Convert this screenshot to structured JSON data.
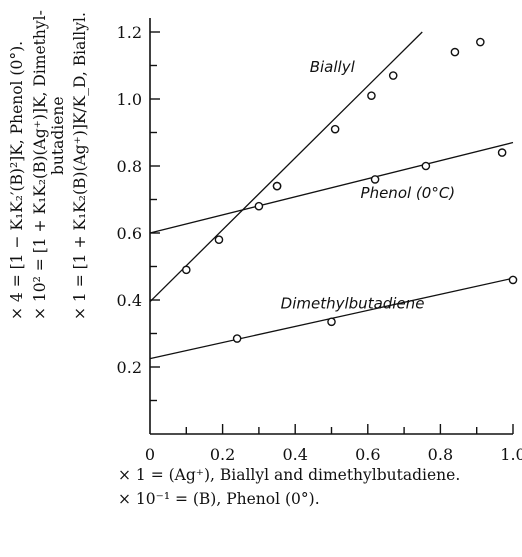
{
  "chart_data": {
    "type": "scatter",
    "title": "",
    "xlim": [
      0,
      1.0
    ],
    "ylim": [
      0,
      1.2
    ],
    "x_ticks": [
      "0",
      "0.2",
      "0.4",
      "0.6",
      "0.8",
      "1.0"
    ],
    "y_ticks": [
      "0.2",
      "0.4",
      "0.6",
      "0.8",
      "1.0",
      "1.2"
    ],
    "ylabel_lines": [
      "× 4 = [1 − K₁K₂′(B)²]K, Phenol (0°).",
      "× 10² = [1 + K₁K₂(B)(Ag⁺)]K, Dimethyl-",
      "butadiene",
      "× 1 = [1 + K₁K₂(B)(Ag⁺)]K/K_D, Biallyl."
    ],
    "xlabel_lines": [
      "× 1 = (Ag⁺), Biallyl and dimethylbutadiene.",
      "× 10⁻¹ = (B), Phenol (0°)."
    ],
    "series": [
      {
        "name": "Biallyl",
        "points": [
          [
            0.1,
            0.49
          ],
          [
            0.19,
            0.58
          ],
          [
            0.35,
            0.74
          ],
          [
            0.51,
            0.91
          ],
          [
            0.61,
            1.01
          ],
          [
            0.67,
            1.07
          ],
          [
            0.84,
            1.14
          ],
          [
            0.91,
            1.17
          ]
        ],
        "line": [
          [
            0.0,
            0.395
          ],
          [
            0.75,
            1.2
          ]
        ]
      },
      {
        "name": "Phenol (0°C)",
        "points": [
          [
            0.3,
            0.68
          ],
          [
            0.35,
            0.74
          ],
          [
            0.62,
            0.76
          ],
          [
            0.76,
            0.8
          ],
          [
            0.97,
            0.84
          ]
        ],
        "line": [
          [
            0.0,
            0.6
          ],
          [
            1.0,
            0.87
          ]
        ]
      },
      {
        "name": "Dimethylbutadiene",
        "points": [
          [
            0.24,
            0.285
          ],
          [
            0.5,
            0.335
          ],
          [
            1.0,
            0.46
          ]
        ],
        "line": [
          [
            0.0,
            0.225
          ],
          [
            1.0,
            0.465
          ]
        ]
      }
    ]
  }
}
